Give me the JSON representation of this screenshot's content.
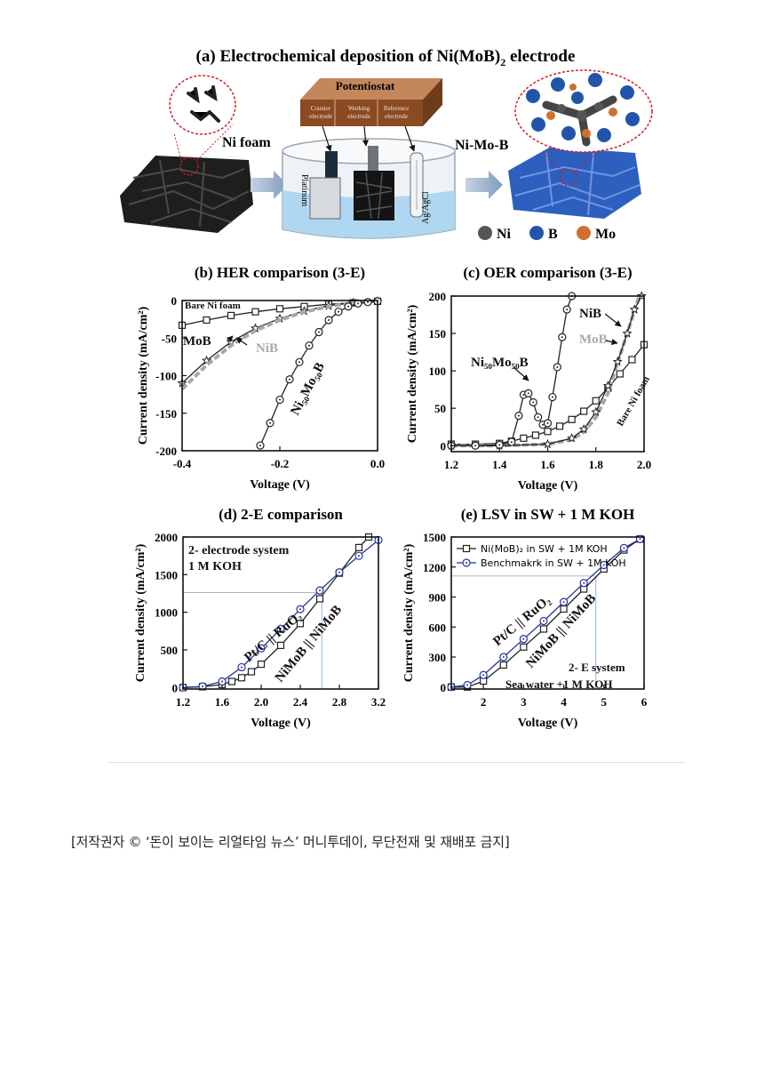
{
  "panel_a": {
    "title": "(a) Electrochemical deposition of Ni(MoB)",
    "title_sub": "2",
    "title_end": " electrode",
    "potentiostat": "Potentiostat",
    "counter": [
      "Counter",
      "electrode"
    ],
    "working": [
      "Working",
      "electrode"
    ],
    "reference": [
      "Reference",
      "electrode"
    ],
    "ni_foam": "Ni foam",
    "ni_mo_b": "Ni-Mo-B",
    "platinum": "Platinum",
    "agcl": "Ag/AgCl",
    "legend": [
      "Ni",
      "B",
      "Mo"
    ],
    "colors": {
      "ni": "#555555",
      "b": "#2255aa",
      "mo": "#d07030",
      "copper": "#9a5a2c",
      "water": "#a9d4ef",
      "foam_blue": "#2d5fbf"
    }
  },
  "chart_data": [
    {
      "id": "b",
      "type": "line",
      "title": "(b) HER comparison (3-E)",
      "xlabel": "Voltage (V)",
      "ylabel": "Current density (mA/cm²)",
      "xlim": [
        -0.4,
        0.0
      ],
      "ylim": [
        -200,
        0
      ],
      "xticks": [
        -0.4,
        -0.2,
        0.0
      ],
      "xtick_labels": [
        "-0.4",
        "-0.2",
        "0.0"
      ],
      "yticks": [
        -200,
        -150,
        -100,
        -50,
        0
      ],
      "ytick_labels": [
        "-200",
        "-150",
        "-100",
        "-50",
        "0"
      ],
      "series": [
        {
          "name": "Bare Ni foam",
          "color": "#222222",
          "marker": "square",
          "x": [
            -0.4,
            -0.35,
            -0.3,
            -0.25,
            -0.2,
            -0.15,
            -0.1,
            -0.05,
            0.0
          ],
          "y": [
            -33,
            -26,
            -20,
            -15,
            -11,
            -8,
            -5,
            -3,
            -1
          ]
        },
        {
          "name": "MoB",
          "color": "#222222",
          "marker": "star",
          "x": [
            -0.4,
            -0.35,
            -0.3,
            -0.25,
            -0.2,
            -0.15,
            -0.1,
            -0.05,
            0.0
          ],
          "y": [
            -110,
            -80,
            -55,
            -37,
            -24,
            -14,
            -7,
            -3,
            -1
          ]
        },
        {
          "name": "NiB",
          "color": "#a8a8a8",
          "marker": "none",
          "x": [
            -0.4,
            -0.35,
            -0.3,
            -0.25,
            -0.2,
            -0.15,
            -0.1,
            -0.05,
            0.0
          ],
          "y": [
            -118,
            -86,
            -60,
            -40,
            -26,
            -15,
            -8,
            -3,
            -1
          ]
        },
        {
          "name": "Ni50Mo50B",
          "color": "#222222",
          "marker": "circle",
          "x": [
            -0.24,
            -0.22,
            -0.2,
            -0.18,
            -0.16,
            -0.14,
            -0.12,
            -0.1,
            -0.08,
            -0.06,
            -0.04,
            -0.02,
            0.0
          ],
          "y": [
            -193,
            -163,
            -132,
            -105,
            -82,
            -60,
            -42,
            -26,
            -15,
            -8,
            -4,
            -2,
            -1
          ]
        }
      ],
      "labels": [
        {
          "text": "Bare Ni foam",
          "style": "bold"
        },
        {
          "text": "MoB",
          "style": "bold"
        },
        {
          "text": "NiB",
          "style": "gray"
        },
        {
          "text": "Ni₅₀Mo₅₀B",
          "style": "rot"
        }
      ]
    },
    {
      "id": "c",
      "type": "line",
      "title": "(c) OER comparison (3-E)",
      "xlabel": "Voltage (V)",
      "ylabel": "Current density (mA/cm²)",
      "xlim": [
        1.2,
        2.0
      ],
      "ylim": [
        -8,
        200
      ],
      "xticks": [
        1.2,
        1.4,
        1.6,
        1.8,
        2.0
      ],
      "xtick_labels": [
        "1.2",
        "1.4",
        "1.6",
        "1.8",
        "2.0"
      ],
      "yticks": [
        0,
        50,
        100,
        150,
        200
      ],
      "ytick_labels": [
        "0",
        "50",
        "100",
        "150",
        "200"
      ],
      "series": [
        {
          "name": "Bare Ni foam",
          "color": "#222222",
          "marker": "square",
          "x": [
            1.2,
            1.3,
            1.4,
            1.45,
            1.5,
            1.55,
            1.6,
            1.65,
            1.7,
            1.75,
            1.8,
            1.85,
            1.9,
            1.95,
            2.0
          ],
          "y": [
            2,
            2,
            3,
            6,
            10,
            14,
            19,
            26,
            35,
            46,
            60,
            77,
            96,
            115,
            135
          ]
        },
        {
          "name": "MoB",
          "color": "#a8a8a8",
          "marker": "none",
          "x": [
            1.2,
            1.4,
            1.6,
            1.7,
            1.75,
            1.8,
            1.85,
            1.88,
            1.92,
            1.96,
            1.98
          ],
          "y": [
            0,
            0,
            2,
            8,
            18,
            38,
            70,
            100,
            140,
            180,
            200
          ]
        },
        {
          "name": "NiB",
          "color": "#222222",
          "marker": "star",
          "x": [
            1.2,
            1.4,
            1.6,
            1.7,
            1.75,
            1.8,
            1.85,
            1.89,
            1.93,
            1.96,
            1.99
          ],
          "y": [
            0,
            0,
            2,
            10,
            22,
            45,
            80,
            112,
            150,
            182,
            200
          ]
        },
        {
          "name": "Ni50Mo50B",
          "color": "#222222",
          "marker": "circle",
          "x": [
            1.2,
            1.3,
            1.4,
            1.45,
            1.48,
            1.5,
            1.52,
            1.54,
            1.56,
            1.58,
            1.6,
            1.62,
            1.64,
            1.66,
            1.68,
            1.7
          ],
          "y": [
            0,
            0,
            1,
            5,
            40,
            68,
            70,
            58,
            38,
            28,
            30,
            65,
            105,
            145,
            182,
            200
          ]
        }
      ],
      "labels": [
        {
          "text": "Ni₅₀Mo₅₀B",
          "style": "bold"
        },
        {
          "text": "NiB",
          "style": "bold"
        },
        {
          "text": "MoB",
          "style": "gray"
        },
        {
          "text": "Bare Ni foam",
          "style": "rot"
        }
      ]
    },
    {
      "id": "d",
      "type": "line",
      "title": "(d) 2-E comparison",
      "xlabel": "Voltage (V)",
      "ylabel": "Current density (mA/cm²)",
      "xlim": [
        1.2,
        3.2
      ],
      "ylim": [
        -20,
        2000
      ],
      "xticks": [
        1.2,
        1.6,
        2.0,
        2.4,
        2.8,
        3.2
      ],
      "xtick_labels": [
        "1.2",
        "1.6",
        "2.0",
        "2.4",
        "2.8",
        "3.2"
      ],
      "yticks": [
        0,
        500,
        1000,
        1500,
        2000
      ],
      "ytick_labels": [
        "0",
        "500",
        "1000",
        "1500",
        "2000"
      ],
      "series": [
        {
          "name": "NiMoB || NiMoB",
          "color": "#222222",
          "marker": "square",
          "x": [
            1.2,
            1.4,
            1.6,
            1.7,
            1.8,
            1.9,
            2.0,
            2.2,
            2.4,
            2.6,
            2.8,
            3.0,
            3.1
          ],
          "y": [
            0,
            10,
            40,
            80,
            130,
            210,
            310,
            560,
            850,
            1180,
            1520,
            1860,
            2000
          ]
        },
        {
          "name": "Pt/C || RuO2",
          "color": "#223399",
          "marker": "circle",
          "x": [
            1.2,
            1.4,
            1.6,
            1.8,
            2.0,
            2.2,
            2.4,
            2.6,
            2.8,
            3.0,
            3.2
          ],
          "y": [
            0,
            15,
            80,
            270,
            520,
            780,
            1040,
            1290,
            1530,
            1750,
            1960
          ]
        }
      ],
      "guides": [
        {
          "x": 2.62,
          "y": 1260
        }
      ],
      "labels": [
        {
          "text": "2- electrode system",
          "style": "plain"
        },
        {
          "text": "1 M KOH",
          "style": "plain"
        },
        {
          "text": "Pt/C || RuO₂",
          "style": "rot"
        },
        {
          "text": "NiMoB || NiMoB",
          "style": "rot"
        }
      ]
    },
    {
      "id": "e",
      "type": "line",
      "title": "(e) LSV in SW + 1 M KOH",
      "xlabel": "Voltage (V)",
      "ylabel": "Current density (mA/cm²)",
      "xlim": [
        1.2,
        6.0
      ],
      "ylim": [
        -20,
        1500
      ],
      "xticks": [
        2,
        3,
        4,
        5,
        6
      ],
      "xtick_labels": [
        "2",
        "3",
        "4",
        "5",
        "6"
      ],
      "yticks": [
        0,
        300,
        600,
        900,
        1200,
        1500
      ],
      "ytick_labels": [
        "0",
        "300",
        "600",
        "900",
        "1200",
        "1500"
      ],
      "series": [
        {
          "name": "Ni(MoB)₂ in SW + 1M KOH",
          "color": "#222222",
          "marker": "square",
          "x": [
            1.2,
            1.6,
            2.0,
            2.5,
            3.0,
            3.5,
            4.0,
            4.5,
            5.0,
            5.5,
            5.9
          ],
          "y": [
            0,
            0,
            60,
            220,
            400,
            580,
            780,
            980,
            1180,
            1370,
            1480
          ]
        },
        {
          "name": "Benchmakrk in SW + 1M KOH",
          "color": "#223399",
          "marker": "circle",
          "x": [
            1.2,
            1.6,
            2.0,
            2.5,
            3.0,
            3.5,
            4.0,
            4.5,
            5.0,
            5.5,
            5.9
          ],
          "y": [
            0,
            20,
            120,
            300,
            480,
            660,
            850,
            1040,
            1220,
            1390,
            1480
          ]
        }
      ],
      "guides": [
        {
          "x": 4.8,
          "y": 1110
        }
      ],
      "labels": [
        {
          "text": "Pt/C || RuO₂",
          "style": "rot"
        },
        {
          "text": "NiMoB || NiMoB",
          "style": "rot"
        },
        {
          "text": "2- E system",
          "style": "plain"
        },
        {
          "text": "Sea water +1 M KOH",
          "style": "plain"
        }
      ]
    }
  ],
  "caption": "[저작권자 © ‘돈이 보이는 리얼타임 뉴스’ 머니투데이, 무단전재 및 재배포 금지]"
}
